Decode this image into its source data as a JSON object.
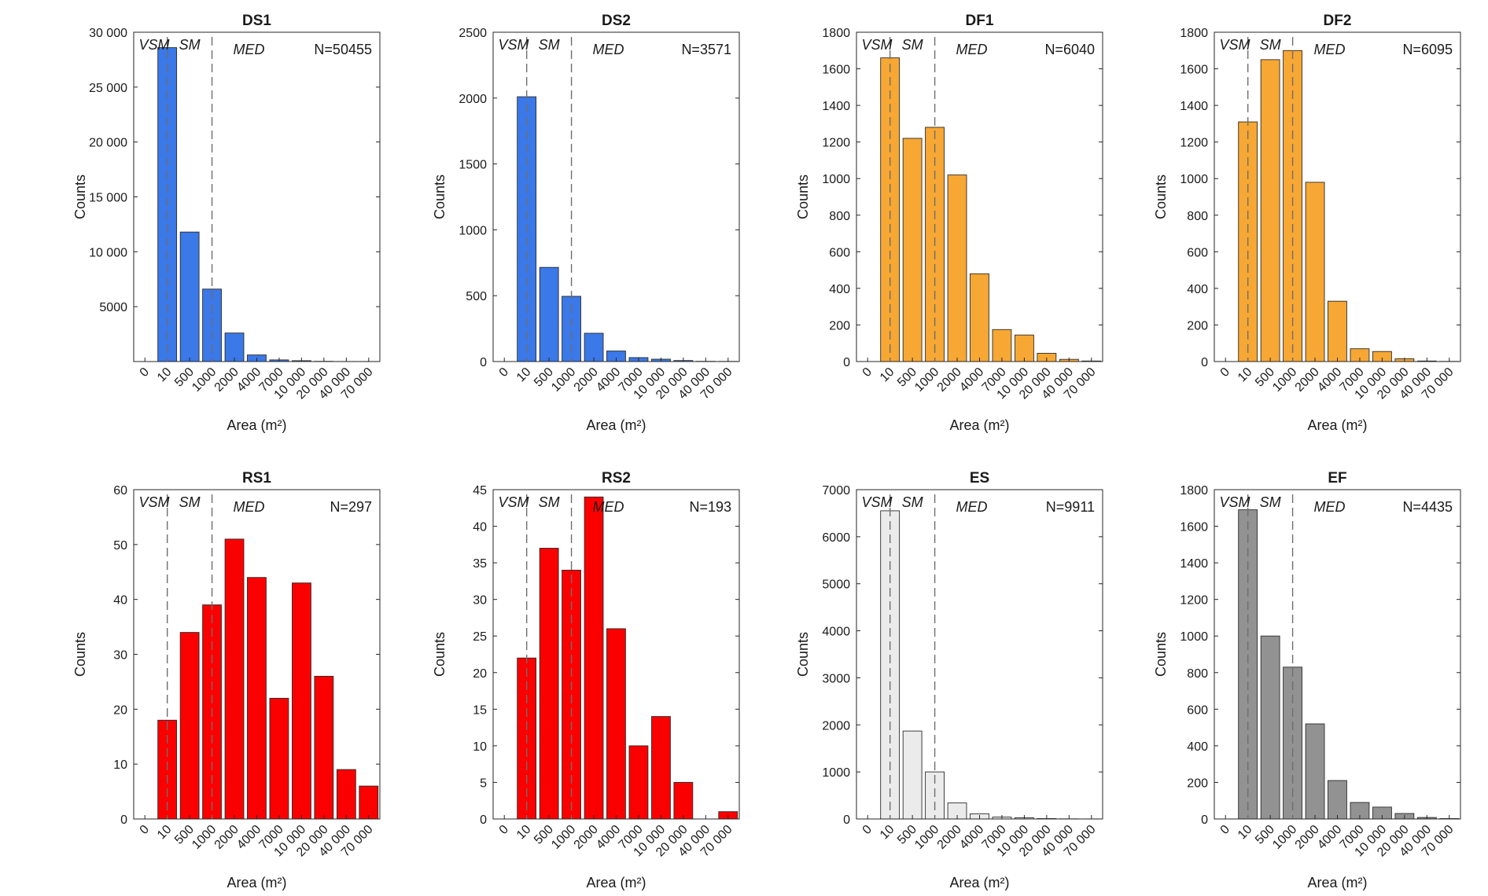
{
  "figure": {
    "x_categories": [
      "0",
      "10",
      "500",
      "1000",
      "2000",
      "4000",
      "7000",
      "10 000",
      "20 000",
      "40 000",
      "70 000"
    ],
    "xlabel": "Area (m²)",
    "ylabel": "Counts",
    "region_labels": [
      "VSM",
      "SM",
      "MED"
    ],
    "threshold_categories": [
      "10",
      "1000"
    ]
  },
  "chart_data": [
    {
      "type": "bar",
      "title": "DS1",
      "n_label": "N=50455",
      "color": "#3b78e8",
      "ylim": [
        0,
        30000
      ],
      "yticks": [
        5000,
        10000,
        15000,
        20000,
        25000,
        30000
      ],
      "ytick_labels": [
        "5000",
        "10 000",
        "15 000",
        "20 000",
        "25 000",
        "30 000"
      ],
      "values": [
        28600,
        11800,
        6600,
        2600,
        600,
        150,
        80,
        20,
        10,
        5
      ]
    },
    {
      "type": "bar",
      "title": "DS2",
      "n_label": "N=3571",
      "color": "#3b78e8",
      "ylim": [
        0,
        2500
      ],
      "yticks": [
        0,
        500,
        1000,
        1500,
        2000,
        2500
      ],
      "ytick_labels": [
        "0",
        "500",
        "1000",
        "1500",
        "2000",
        "2500"
      ],
      "values": [
        2010,
        715,
        495,
        215,
        80,
        30,
        18,
        8,
        2,
        1
      ]
    },
    {
      "type": "bar",
      "title": "DF1",
      "n_label": "N=6040",
      "color": "#f7a733",
      "ylim": [
        0,
        1800
      ],
      "yticks": [
        0,
        200,
        400,
        600,
        800,
        1000,
        1200,
        1400,
        1600,
        1800
      ],
      "ytick_labels": [
        "0",
        "200",
        "400",
        "600",
        "800",
        "1000",
        "1200",
        "1400",
        "1600",
        "1800"
      ],
      "values": [
        1660,
        1220,
        1280,
        1020,
        480,
        175,
        145,
        45,
        12,
        3
      ]
    },
    {
      "type": "bar",
      "title": "DF2",
      "n_label": "N=6095",
      "color": "#f7a733",
      "ylim": [
        0,
        1800
      ],
      "yticks": [
        0,
        200,
        400,
        600,
        800,
        1000,
        1200,
        1400,
        1600,
        1800
      ],
      "ytick_labels": [
        "0",
        "200",
        "400",
        "600",
        "800",
        "1000",
        "1200",
        "1400",
        "1600",
        "1800"
      ],
      "values": [
        1310,
        1650,
        1700,
        980,
        330,
        70,
        55,
        15,
        3,
        1
      ]
    },
    {
      "type": "bar",
      "title": "RS1",
      "n_label": "N=297",
      "color": "#fb0000",
      "ylim": [
        0,
        60
      ],
      "yticks": [
        0,
        10,
        20,
        30,
        40,
        50,
        60
      ],
      "ytick_labels": [
        "0",
        "10",
        "20",
        "30",
        "40",
        "50",
        "60"
      ],
      "values": [
        18,
        34,
        39,
        51,
        44,
        22,
        43,
        26,
        9,
        6
      ]
    },
    {
      "type": "bar",
      "title": "RS2",
      "n_label": "N=193",
      "color": "#fb0000",
      "ylim": [
        0,
        45
      ],
      "yticks": [
        0,
        5,
        10,
        15,
        20,
        25,
        30,
        35,
        40,
        45
      ],
      "ytick_labels": [
        "0",
        "5",
        "10",
        "15",
        "20",
        "25",
        "30",
        "35",
        "40",
        "45"
      ],
      "values": [
        22,
        37,
        34,
        44,
        26,
        10,
        14,
        5,
        0,
        1
      ]
    },
    {
      "type": "bar",
      "title": "ES",
      "n_label": "N=9911",
      "color": "#ebebeb",
      "ylim": [
        0,
        7000
      ],
      "yticks": [
        0,
        1000,
        2000,
        3000,
        4000,
        5000,
        6000,
        7000
      ],
      "ytick_labels": [
        "0",
        "1000",
        "2000",
        "3000",
        "4000",
        "5000",
        "6000",
        "7000"
      ],
      "values": [
        6550,
        1870,
        1000,
        340,
        110,
        40,
        25,
        8,
        3,
        1
      ]
    },
    {
      "type": "bar",
      "title": "EF",
      "n_label": "N=4435",
      "color": "#929292",
      "ylim": [
        0,
        1800
      ],
      "yticks": [
        0,
        200,
        400,
        600,
        800,
        1000,
        1200,
        1400,
        1600,
        1800
      ],
      "ytick_labels": [
        "0",
        "200",
        "400",
        "600",
        "800",
        "1000",
        "1200",
        "1400",
        "1600",
        "1800"
      ],
      "values": [
        1690,
        1000,
        830,
        520,
        210,
        90,
        65,
        30,
        8,
        2
      ]
    }
  ]
}
